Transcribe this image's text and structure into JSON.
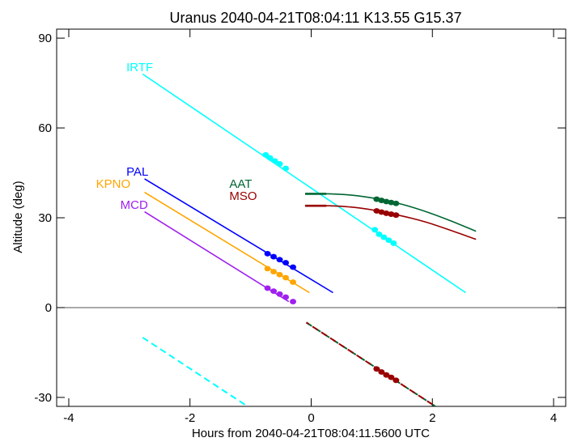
{
  "chart_data": {
    "type": "line",
    "title": "Uranus 2040-04-21T08:04:11  K13.55  G15.37",
    "xlabel": "Hours from 2040-04-21T08:04:11.5600 UTC",
    "ylabel": "Altitude (deg)",
    "xlim": [
      -4.2,
      4.2
    ],
    "ylim": [
      -33,
      93
    ],
    "xticks": [
      -4,
      -2,
      0,
      2,
      4
    ],
    "xtick_labels": [
      "-4",
      "-2",
      "0",
      "2",
      "4"
    ],
    "yticks": [
      -30,
      0,
      30,
      60,
      90
    ],
    "ytick_labels": [
      "-30",
      "0",
      "30",
      "60",
      "90"
    ],
    "zero_line": true,
    "grid": false,
    "series": [
      {
        "name": "IRTF",
        "color": "#00ffff",
        "label_at": [
          -3.05,
          79
        ],
        "segments": [
          {
            "style": "solid",
            "x": [
              -2.78,
              2.55
            ],
            "y": [
              78,
              5
            ]
          },
          {
            "style": "dashed",
            "x": [
              -2.78,
              -1.05
            ],
            "y": [
              -10,
              -33
            ]
          }
        ],
        "markers": {
          "x": [
            -0.75,
            -0.68,
            -0.6,
            -0.52,
            -0.42,
            1.05,
            1.12,
            1.2,
            1.28,
            1.36
          ],
          "y": [
            51,
            50,
            49,
            48,
            46.5,
            26,
            24.5,
            23.5,
            22.5,
            21.5
          ]
        }
      },
      {
        "name": "PAL",
        "color": "#0000ff",
        "label_at": [
          -3.05,
          44
        ],
        "segments": [
          {
            "style": "solid",
            "x": [
              -2.75,
              0.36
            ],
            "y": [
              43,
              5
            ]
          }
        ],
        "markers": {
          "x": [
            -0.72,
            -0.62,
            -0.52,
            -0.42,
            -0.3
          ],
          "y": [
            18,
            17,
            16,
            15,
            13.5
          ]
        }
      },
      {
        "name": "KPNO",
        "color": "#ffa500",
        "label_at": [
          -3.55,
          40
        ],
        "segments": [
          {
            "style": "solid",
            "x": [
              -2.75,
              -0.03
            ],
            "y": [
              38.5,
              5
            ]
          }
        ],
        "markers": {
          "x": [
            -0.72,
            -0.62,
            -0.52,
            -0.42,
            -0.3
          ],
          "y": [
            13,
            12,
            11,
            10,
            8.5
          ]
        }
      },
      {
        "name": "MCD",
        "color": "#a020f0",
        "label_at": [
          -3.15,
          33
        ],
        "segments": [
          {
            "style": "solid",
            "x": [
              -2.75,
              -0.37
            ],
            "y": [
              32,
              2
            ]
          }
        ],
        "markers": {
          "x": [
            -0.72,
            -0.62,
            -0.52,
            -0.42,
            -0.3
          ],
          "y": [
            6.5,
            5.5,
            4.5,
            3.5,
            2
          ]
        }
      },
      {
        "name": "AAT",
        "color": "#006633",
        "label_at": [
          -1.35,
          40
        ],
        "segments": [
          {
            "style": "solid",
            "curve": true,
            "x": [
              -0.1,
              0.3,
              0.7,
              1.1,
              1.5,
              1.9,
              2.3,
              2.72
            ],
            "y": [
              38,
              38,
              37.5,
              36.3,
              34.5,
              32,
              29,
              25.5
            ]
          },
          {
            "style": "solid",
            "width": 2.6,
            "x": [
              -0.1,
              0.25
            ],
            "y": [
              38,
              38
            ]
          },
          {
            "style": "dashed",
            "x": [
              -0.08,
              2.05
            ],
            "y": [
              -5,
              -33
            ]
          }
        ],
        "markers": {
          "x": [
            1.08,
            1.16,
            1.24,
            1.32,
            1.4
          ],
          "y": [
            36.2,
            35.8,
            35.4,
            35.1,
            34.8
          ]
        }
      },
      {
        "name": "MSO",
        "color": "#990000",
        "label_at": [
          -1.35,
          36
        ],
        "segments": [
          {
            "style": "solid",
            "curve": true,
            "x": [
              -0.1,
              0.3,
              0.7,
              1.1,
              1.5,
              1.9,
              2.3,
              2.72
            ],
            "y": [
              34,
              34,
              33.5,
              32.3,
              30.6,
              28.5,
              25.8,
              22.8
            ]
          },
          {
            "style": "solid",
            "width": 2.6,
            "x": [
              -0.1,
              0.25
            ],
            "y": [
              34,
              34
            ]
          },
          {
            "style": "dashed",
            "offset": 4,
            "x": [
              -0.08,
              2.05
            ],
            "y": [
              -5,
              -33
            ]
          }
        ],
        "markers": {
          "x": [
            1.08,
            1.16,
            1.24,
            1.32,
            1.4,
            1.08,
            1.16,
            1.24,
            1.32,
            1.4
          ],
          "y": [
            32.3,
            31.9,
            31.5,
            31.2,
            30.9,
            -20.5,
            -21.5,
            -22.5,
            -23.3,
            -24.3
          ]
        }
      }
    ]
  }
}
